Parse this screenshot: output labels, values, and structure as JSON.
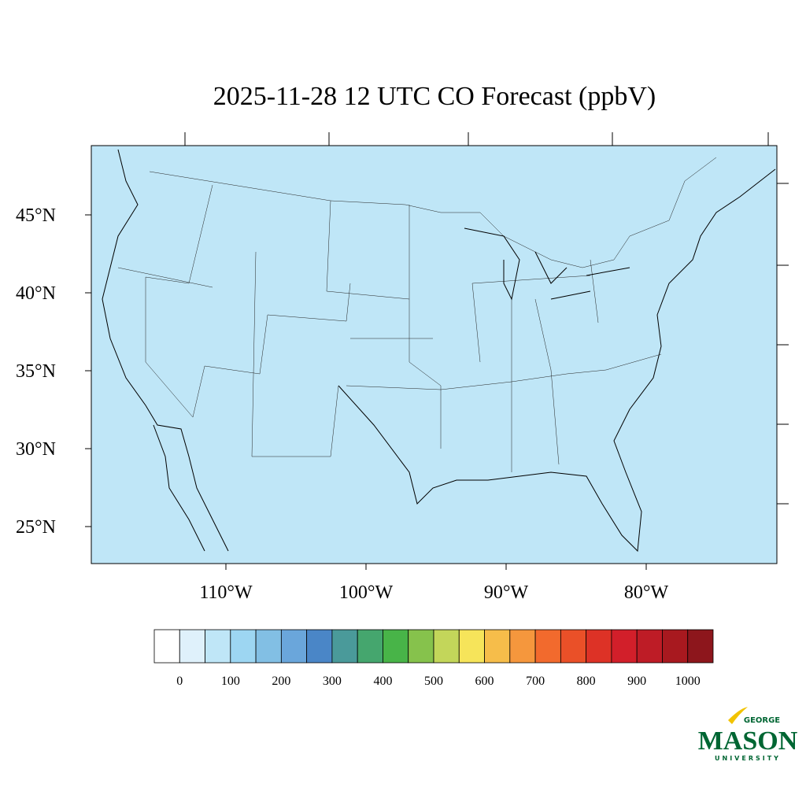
{
  "map": {
    "title": "2025-11-28 12 UTC CO Forecast (ppbV)",
    "lat_labels": [
      {
        "value": 45,
        "label": "45°N"
      },
      {
        "value": 40,
        "label": "40°N"
      },
      {
        "value": 35,
        "label": "35°N"
      },
      {
        "value": 30,
        "label": "30°N"
      },
      {
        "value": 25,
        "label": "25°N"
      }
    ],
    "lon_labels": [
      {
        "value": 110,
        "label": "110°W"
      },
      {
        "value": 100,
        "label": "100°W"
      },
      {
        "value": 90,
        "label": "90°W"
      },
      {
        "value": 80,
        "label": "80°W"
      }
    ],
    "background_color": "#bfe6f7"
  },
  "colorbar": {
    "step": 50,
    "levels": [
      0,
      100,
      200,
      300,
      400,
      500,
      600,
      700,
      800,
      900,
      1000
    ],
    "colors": [
      "#ffffff",
      "#dff1fb",
      "#bfe6f7",
      "#9dd6f2",
      "#82bfe4",
      "#6aa6db",
      "#4a86c7",
      "#4a9a9a",
      "#45a66e",
      "#48b448",
      "#86c24c",
      "#c3d65a",
      "#f6e45a",
      "#f6bd4a",
      "#f5973d",
      "#f26a2d",
      "#ea5028",
      "#dd3226",
      "#d21f2a",
      "#be1c26",
      "#a8191f",
      "#8d161c"
    ]
  },
  "logo": {
    "top": "GEORGE",
    "main": "MASON",
    "bottom": "UNIVERSITY"
  }
}
